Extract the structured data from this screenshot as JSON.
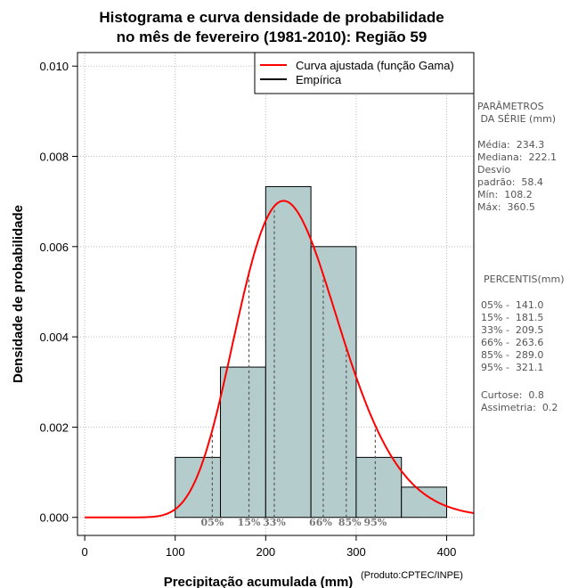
{
  "chart_data": {
    "type": "bar",
    "title_line1": "Histograma e curva densidade de probabilidade",
    "title_line2": "no mês de fevereiro (1981-2010): Região 59",
    "xlabel": "Precipitação acumulada (mm)",
    "ylabel": "Densidade de probabilidade",
    "xlim": [
      -8,
      430
    ],
    "ylim": [
      -0.0004,
      0.0103
    ],
    "xticks": [
      0,
      100,
      200,
      300,
      400
    ],
    "yticks": [
      0.0,
      0.002,
      0.004,
      0.006,
      0.008,
      0.01
    ],
    "ytick_labels": [
      "0.000",
      "0.002",
      "0.004",
      "0.006",
      "0.008",
      "0.010"
    ],
    "bins": [
      {
        "x0": 100,
        "x1": 150,
        "density": 0.00133
      },
      {
        "x0": 150,
        "x1": 200,
        "density": 0.00333
      },
      {
        "x0": 200,
        "x1": 250,
        "density": 0.00733
      },
      {
        "x0": 250,
        "x1": 300,
        "density": 0.006
      },
      {
        "x0": 300,
        "x1": 350,
        "density": 0.00133
      },
      {
        "x0": 350,
        "x1": 400,
        "density": 0.00067
      }
    ],
    "gamma_fit": {
      "mean": 234.3,
      "sd": 58.4
    },
    "percentile_lines": [
      {
        "label": "05%",
        "value": 141.0
      },
      {
        "label": "15%",
        "value": 181.5
      },
      {
        "label": "33%",
        "value": 209.5
      },
      {
        "label": "66%",
        "value": 263.6
      },
      {
        "label": "85%",
        "value": 289.0
      },
      {
        "label": "95%",
        "value": 321.1
      }
    ],
    "legend": [
      {
        "label": "Curva ajustada (função Gama)",
        "color": "#ff0000"
      },
      {
        "label": "Empírica",
        "color": "#000000"
      }
    ],
    "legend_position": "top-right",
    "grid": true,
    "colors": {
      "bar_fill": "#b4cccc",
      "curve": "#ff0000",
      "grid": "#bbbbbb",
      "percentile": "#555555"
    }
  },
  "side_panel": {
    "params_title": "PARÂMETROS\n DA SÉRIE (mm)",
    "params_body": "Média:  234.3\nMediana:  222.1\nDesvio\npadrão:  58.4\nMín:  108.2\nMáx:  360.5",
    "percentis_title": "PERCENTIS(mm)",
    "percentis_body": "05% -  141.0\n15% -  181.5\n33% -  209.5\n66% -  263.6\n85% -  289.0\n95% -  321.1",
    "shape_body": "Curtose:  0.8\nAssimetria:  0.2"
  },
  "credit": "(Produto:CPTEC/INPE)"
}
